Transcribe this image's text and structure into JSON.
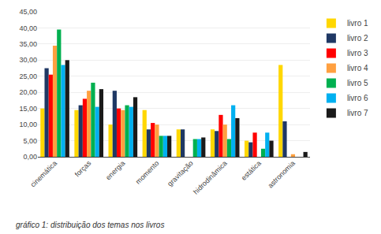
{
  "chart_data": {
    "type": "bar",
    "categories": [
      "cinemática",
      "forças",
      "energia",
      "momento",
      "gravitação",
      "hidrodinâmica",
      "estática",
      "astronomia"
    ],
    "series": [
      {
        "name": "livro 1",
        "color": "#FFD700",
        "values": [
          15,
          14.5,
          10,
          14.5,
          8.5,
          8.5,
          5,
          28.5
        ]
      },
      {
        "name": "livro 2",
        "color": "#1F3864",
        "values": [
          27.5,
          16,
          20.5,
          8.5,
          8.5,
          8,
          4.5,
          11
        ]
      },
      {
        "name": "livro 3",
        "color": "#FF0000",
        "values": [
          25.5,
          18,
          15,
          10.5,
          0,
          13,
          7.5,
          0
        ]
      },
      {
        "name": "livro 4",
        "color": "#FFA040",
        "values": [
          34.5,
          20.5,
          14.5,
          10,
          0,
          10,
          0,
          0.8
        ]
      },
      {
        "name": "livro 5",
        "color": "#00B050",
        "values": [
          39.5,
          23,
          16,
          6.5,
          5.5,
          5.5,
          2.5,
          0
        ]
      },
      {
        "name": "livro 6",
        "color": "#00B0F0",
        "values": [
          28.5,
          15.5,
          15.5,
          6.5,
          5.5,
          16,
          7.5,
          0
        ]
      },
      {
        "name": "livro 7",
        "color": "#1A1A1A",
        "values": [
          30,
          21,
          18.5,
          6.5,
          6,
          12,
          5,
          1.5
        ]
      }
    ],
    "ylim": [
      0,
      45
    ],
    "yticks": [
      {
        "value": 0,
        "label": "0,00"
      },
      {
        "value": 5,
        "label": "5,00"
      },
      {
        "value": 10,
        "label": "10,00"
      },
      {
        "value": 15,
        "label": "15,00"
      },
      {
        "value": 20,
        "label": "20,00"
      },
      {
        "value": 25,
        "label": "25,00"
      },
      {
        "value": 30,
        "label": "30,00"
      },
      {
        "value": 35,
        "label": "35,00"
      },
      {
        "value": 40,
        "label": "40,00"
      },
      {
        "value": 45,
        "label": "45,00"
      }
    ],
    "grid": true,
    "legend": "right",
    "annotations": [
      "gráfico 1: distribuição dos temas nos livros"
    ]
  }
}
